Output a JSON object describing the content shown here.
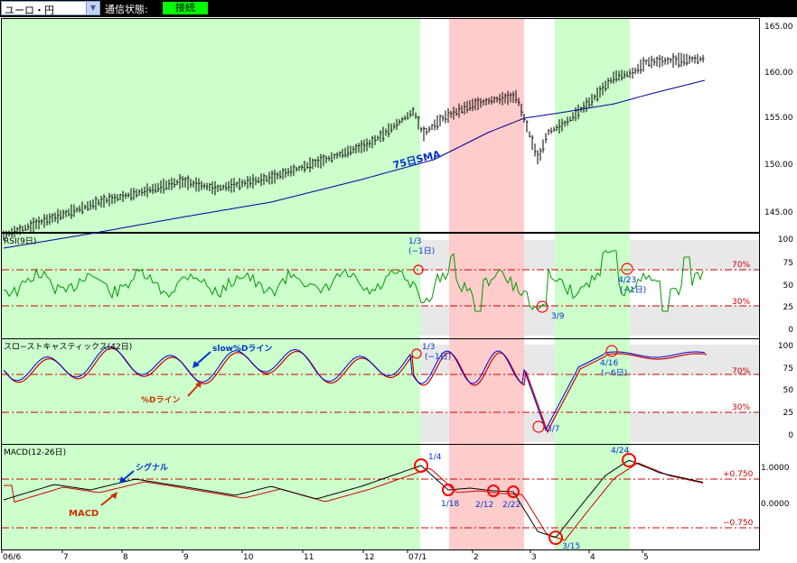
{
  "toolbar": {
    "pair": "ユーロ・円",
    "status_label": "通信状態:",
    "status_value": "接続"
  },
  "colors": {
    "green_zone": "#ccffcc",
    "red_zone": "#ffcccc",
    "price_bar": "#000000",
    "sma": "#000099",
    "rsi": "#009900",
    "slow_d": "#0000cc",
    "pct_d": "#cc0000",
    "macd": "#000000",
    "signal": "#cc0000",
    "ref_line": "#cc0000",
    "circle": "#ff0000",
    "annotation_blue": "#0033cc",
    "annotation_red": "#cc3300"
  },
  "price_panel": {
    "y_ticks": [
      "165.00",
      "160.00",
      "155.00",
      "150.00",
      "145.00"
    ],
    "sma_label": "75日SMA"
  },
  "rsi_panel": {
    "title": "RSI(9日)",
    "y_ticks": [
      "100",
      "75",
      "50",
      "25",
      "0"
    ],
    "ref_labels": [
      "70%",
      "30%"
    ],
    "annotations": [
      "1/3",
      "(−1日)",
      "3/9",
      "4/23",
      "(−1日)"
    ]
  },
  "stoch_panel": {
    "title": "スロ−ストキャスティックス(42日)",
    "y_ticks": [
      "100",
      "75",
      "50",
      "25",
      "0"
    ],
    "ref_labels": [
      "70%",
      "30%"
    ],
    "line_labels": [
      "slow%Dライン",
      "%Dライン"
    ],
    "annotations": [
      "1/3",
      "(−1日)",
      "3/7",
      "4/16",
      "(−6日)"
    ]
  },
  "macd_panel": {
    "title": "MACD(12-26日)",
    "y_ticks": [
      "1.0000",
      "0.0000"
    ],
    "ref_labels": [
      "+0.750",
      "−0.750"
    ],
    "line_labels": [
      "シグナル",
      "MACD"
    ],
    "annotations": [
      "1/4",
      "1/18",
      "2/12",
      "2/22",
      "3/15",
      "4/24"
    ]
  },
  "x_axis": {
    "labels": [
      "06/6",
      "7",
      "8",
      "9",
      "10",
      "11",
      "12",
      "07/1",
      "2",
      "3",
      "4",
      "5"
    ]
  }
}
